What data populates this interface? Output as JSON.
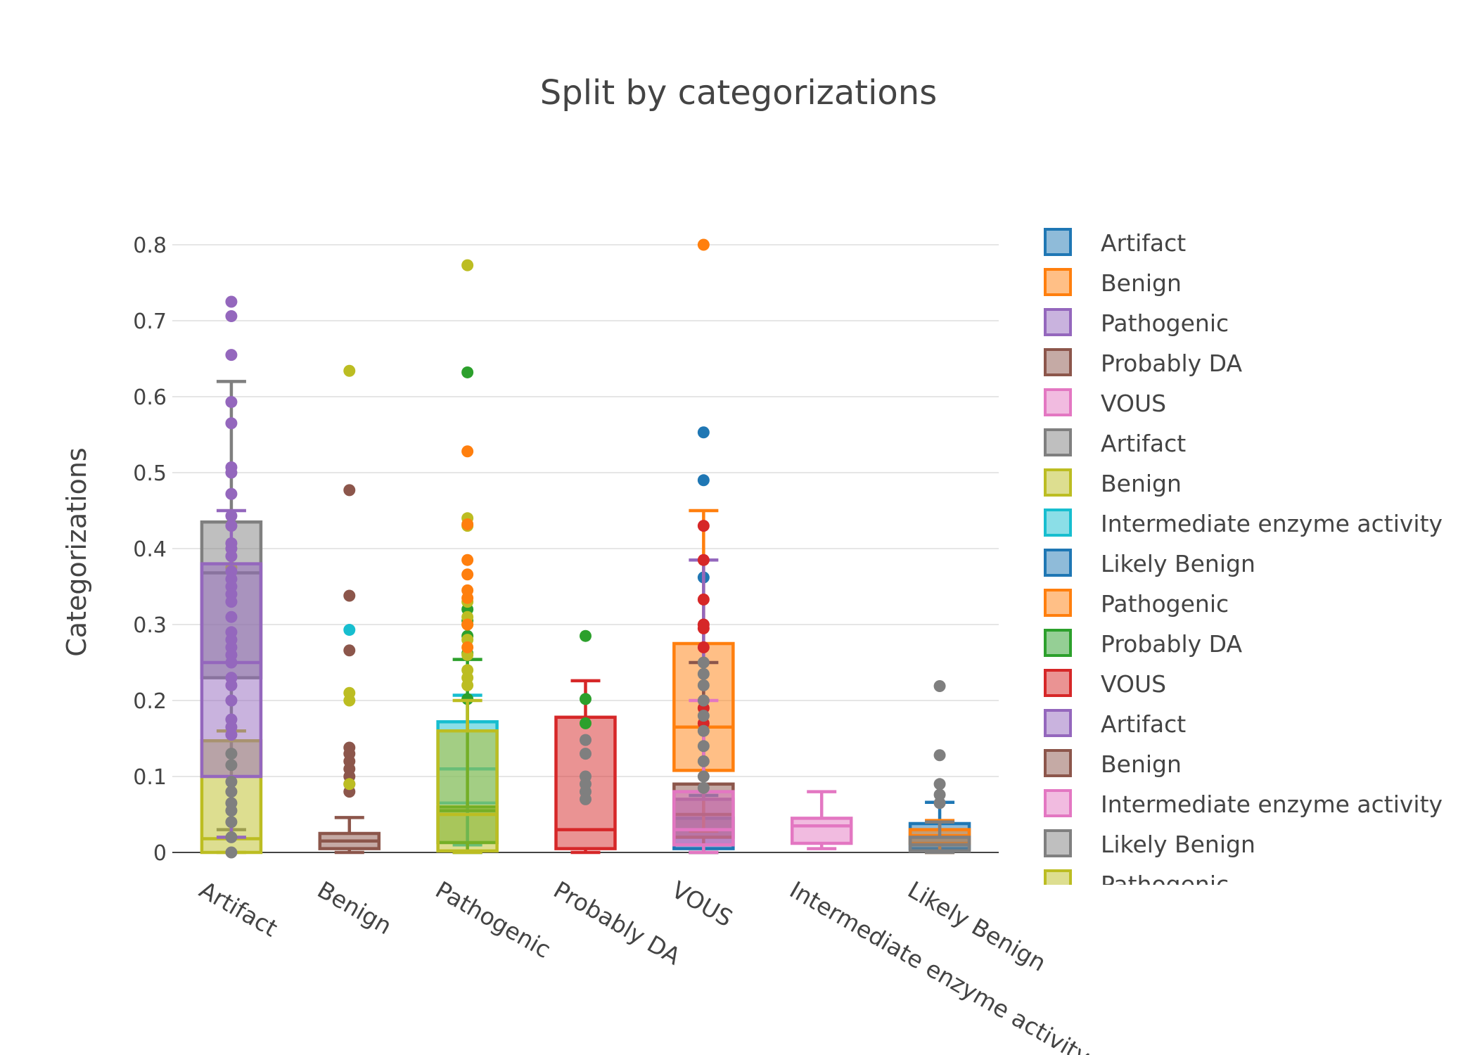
{
  "chart_data": {
    "type": "box",
    "title": "Split by categorizations",
    "ylabel": "Categorizations",
    "xlabel": "",
    "ylim": [
      0,
      0.8
    ],
    "yticks": [
      0,
      0.1,
      0.2,
      0.3,
      0.4,
      0.5,
      0.6,
      0.7,
      0.8
    ],
    "grid": true,
    "legend_position": "right",
    "categories": [
      "Artifact",
      "Benign",
      "Pathogenic",
      "Probably DA",
      "VOUS",
      "Intermediate enzyme activity",
      "Likely Benign"
    ],
    "series": [
      {
        "name": "Artifact",
        "color": "#1f77b4",
        "category": "VOUS",
        "box": [
          0,
          0.005,
          0.02,
          0.045,
          0.075
        ],
        "outliers": [
          0.362,
          0.49,
          0.553
        ]
      },
      {
        "name": "Benign",
        "color": "#ff7f0e",
        "category": "VOUS",
        "box": [
          0.028,
          0.108,
          0.165,
          0.275,
          0.45
        ],
        "outliers": [
          0.8
        ]
      },
      {
        "name": "Pathogenic",
        "color": "#9467bd",
        "category": "VOUS",
        "box": [
          0,
          0.01,
          0.03,
          0.07,
          0.385
        ],
        "outliers": []
      },
      {
        "name": "Probably DA",
        "color": "#8c564b",
        "category": "VOUS",
        "box": [
          0,
          0.02,
          0.05,
          0.09,
          0.25
        ],
        "outliers": []
      },
      {
        "name": "VOUS",
        "color": "#e377c2",
        "category": "VOUS",
        "box": [
          0,
          0.01,
          0.03,
          0.08,
          0.2
        ],
        "outliers": []
      },
      {
        "name": "Artifact",
        "color": "#7f7f7f",
        "category": "Artifact",
        "box": [
          0.03,
          0.23,
          0.368,
          0.435,
          0.62
        ],
        "outliers": []
      },
      {
        "name": "Benign",
        "color": "#bcbd22",
        "category": "Artifact",
        "box": [
          0,
          0,
          0.018,
          0.147,
          0.16
        ],
        "outliers": [
          0.375
        ]
      },
      {
        "name": "Intermediate enzyme activity",
        "color": "#17becf",
        "category": "Pathogenic",
        "box": [
          0.01,
          0.065,
          0.11,
          0.172,
          0.207
        ],
        "outliers": []
      },
      {
        "name": "Likely Benign",
        "color": "#1f77b4",
        "category": "Likely Benign",
        "box": [
          0,
          0.005,
          0.02,
          0.038,
          0.066
        ],
        "outliers": []
      },
      {
        "name": "Pathogenic",
        "color": "#ff7f0e",
        "category": "Likely Benign",
        "box": [
          0,
          0.012,
          0.022,
          0.03,
          0.042
        ],
        "outliers": []
      },
      {
        "name": "Probably DA",
        "color": "#2ca02c",
        "category": "Pathogenic",
        "box": [
          0,
          0.013,
          0.055,
          0.06,
          0.254
        ],
        "outliers": [
          0.632,
          0.32,
          0.305,
          0.285,
          0.262,
          0.202
        ]
      },
      {
        "name": "VOUS",
        "color": "#d62728",
        "category": "Probably DA",
        "box": [
          0,
          0.005,
          0.03,
          0.178,
          0.226
        ],
        "outliers": []
      },
      {
        "name": "Artifact",
        "color": "#9467bd",
        "category": "Artifact",
        "box": [
          0.02,
          0.1,
          0.25,
          0.38,
          0.45
        ],
        "outliers": [
          0.725,
          0.706,
          0.655,
          0.593,
          0.565,
          0.507,
          0.5,
          0.472,
          0.443,
          0.43,
          0.407,
          0.4,
          0.39,
          0.37,
          0.36,
          0.35,
          0.34,
          0.33,
          0.31,
          0.29,
          0.28,
          0.27,
          0.26,
          0.25,
          0.23,
          0.22,
          0.2,
          0.175,
          0.165,
          0.155
        ]
      },
      {
        "name": "Benign",
        "color": "#8c564b",
        "category": "Benign",
        "box": [
          0,
          0.005,
          0.015,
          0.025,
          0.046
        ],
        "outliers": [
          0.477,
          0.338,
          0.266,
          0.138,
          0.13,
          0.12,
          0.11,
          0.1,
          0.09,
          0.08
        ]
      },
      {
        "name": "Intermediate enzyme activity",
        "color": "#e377c2",
        "category": "Intermediate enzyme activity",
        "box": [
          0.005,
          0.012,
          0.035,
          0.045,
          0.08
        ],
        "outliers": []
      },
      {
        "name": "Likely Benign",
        "color": "#7f7f7f",
        "category": "Likely Benign",
        "box": [
          0,
          0.002,
          0.01,
          0.02,
          0.04
        ],
        "outliers": [
          0.219,
          0.128,
          0.09,
          0.076,
          0.065
        ]
      },
      {
        "name": "Pathogenic",
        "color": "#bcbd22",
        "category": "Pathogenic",
        "box": [
          0,
          0.002,
          0.05,
          0.16,
          0.2
        ],
        "outliers": [
          0.773,
          0.44,
          0.43,
          0.33,
          0.31,
          0.3,
          0.28,
          0.26,
          0.24,
          0.23,
          0.22
        ]
      }
    ],
    "extra_outliers": [
      {
        "category": "Benign",
        "color": "#bcbd22",
        "values": [
          0.634,
          0.21,
          0.2,
          0.09
        ]
      },
      {
        "category": "Benign",
        "color": "#17becf",
        "values": [
          0.293
        ]
      },
      {
        "category": "Pathogenic",
        "color": "#ff7f0e",
        "values": [
          0.528,
          0.432,
          0.385,
          0.366,
          0.345,
          0.335,
          0.3,
          0.27
        ]
      },
      {
        "category": "Probably DA",
        "color": "#2ca02c",
        "values": [
          0.285,
          0.202,
          0.17
        ]
      },
      {
        "category": "Probably DA",
        "color": "#7f7f7f",
        "values": [
          0.148,
          0.13,
          0.1,
          0.09,
          0.08,
          0.07
        ]
      },
      {
        "category": "VOUS",
        "color": "#d62728",
        "values": [
          0.43,
          0.385,
          0.333,
          0.3,
          0.295,
          0.27,
          0.19,
          0.17
        ]
      },
      {
        "category": "VOUS",
        "color": "#7f7f7f",
        "values": [
          0.25,
          0.235,
          0.22,
          0.2,
          0.18,
          0.16,
          0.14,
          0.12,
          0.1,
          0.085
        ]
      },
      {
        "category": "Artifact",
        "color": "#7f7f7f",
        "values": [
          0.13,
          0.115,
          0.093,
          0.08,
          0.065,
          0.055,
          0.04,
          0.02,
          0
        ]
      }
    ],
    "legend": [
      "Artifact",
      "Benign",
      "Pathogenic",
      "Probably DA",
      "VOUS",
      "Artifact",
      "Benign",
      "Intermediate enzyme activity",
      "Likely Benign",
      "Pathogenic",
      "Probably DA",
      "VOUS",
      "Artifact",
      "Benign",
      "Intermediate enzyme activity",
      "Likely Benign",
      "Pathogenic"
    ]
  },
  "colors": {
    "legend": [
      "#1f77b4",
      "#ff7f0e",
      "#9467bd",
      "#8c564b",
      "#e377c2",
      "#7f7f7f",
      "#bcbd22",
      "#17becf",
      "#1f77b4",
      "#ff7f0e",
      "#2ca02c",
      "#d62728",
      "#9467bd",
      "#8c564b",
      "#e377c2",
      "#7f7f7f",
      "#bcbd22"
    ]
  }
}
